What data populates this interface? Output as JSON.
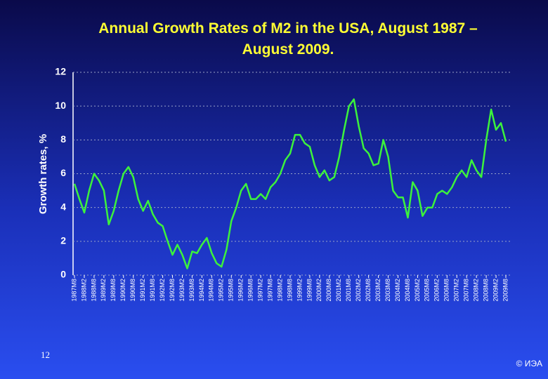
{
  "chart_data": {
    "type": "line",
    "title": "Annual Growth Rates of M2 in the USA, August 1987 – August 2009.",
    "y_label": "Growth rates, %",
    "categories": [
      "1987M8",
      null,
      "1988M2",
      null,
      "1988M8",
      null,
      "1989M2",
      null,
      "1989M8",
      null,
      "1990M2",
      null,
      "1990M8",
      null,
      "1991M2",
      null,
      "1991M8",
      null,
      "1992M2",
      null,
      "1992M8",
      null,
      "1993M2",
      null,
      "1993M8",
      null,
      "1994M2",
      null,
      "1994M8",
      null,
      "1995M2",
      null,
      "1995M8",
      null,
      "1996M2",
      null,
      "1996M8",
      null,
      "1997M2",
      null,
      "1997M8",
      null,
      "1998M2",
      null,
      "1998M8",
      null,
      "1999M2",
      null,
      "1999M8",
      null,
      "2000M2",
      null,
      "2000M8",
      null,
      "2001M2",
      null,
      "2001M8",
      null,
      "2002M2",
      null,
      "2002M8",
      null,
      "2003M2",
      null,
      "2003M8",
      null,
      "2004M2",
      null,
      "2004M8",
      null,
      "2005M2",
      null,
      "2005M8",
      null,
      "2006M2",
      null,
      "2006M8",
      null,
      "2007M2",
      null,
      "2007M8",
      null,
      "2008M2",
      null,
      "2008M8",
      null,
      "2009M2",
      null,
      "2009M8"
    ],
    "values": [
      5.4,
      4.5,
      3.7,
      5.0,
      6.0,
      5.6,
      5.0,
      3.0,
      3.8,
      5.0,
      6.0,
      6.4,
      5.8,
      4.5,
      3.8,
      4.4,
      3.6,
      3.1,
      2.9,
      2.0,
      1.2,
      1.8,
      1.2,
      0.4,
      1.4,
      1.3,
      1.8,
      2.2,
      1.3,
      0.7,
      0.5,
      1.5,
      3.2,
      4.0,
      5.0,
      5.4,
      4.5,
      4.5,
      4.8,
      4.5,
      5.2,
      5.5,
      6.0,
      6.8,
      7.2,
      8.3,
      8.3,
      7.8,
      7.6,
      6.5,
      5.8,
      6.2,
      5.6,
      5.8,
      7.0,
      8.6,
      10.0,
      10.4,
      8.8,
      7.5,
      7.2,
      6.5,
      6.6,
      8.0,
      7.0,
      5.0,
      4.6,
      4.6,
      3.4,
      5.5,
      5.0,
      3.5,
      4.0,
      4.0,
      4.8,
      5.0,
      4.8,
      5.2,
      5.8,
      6.2,
      5.8,
      6.8,
      6.2,
      5.8,
      8.0,
      9.8,
      8.6,
      9.0,
      7.9
    ],
    "color": "#3cf23c",
    "ylim": [
      0,
      12
    ],
    "yticks": [
      0,
      2,
      4,
      6,
      8,
      10,
      12
    ],
    "grid": true
  },
  "slide_number": "12",
  "footer": "© ИЭА"
}
